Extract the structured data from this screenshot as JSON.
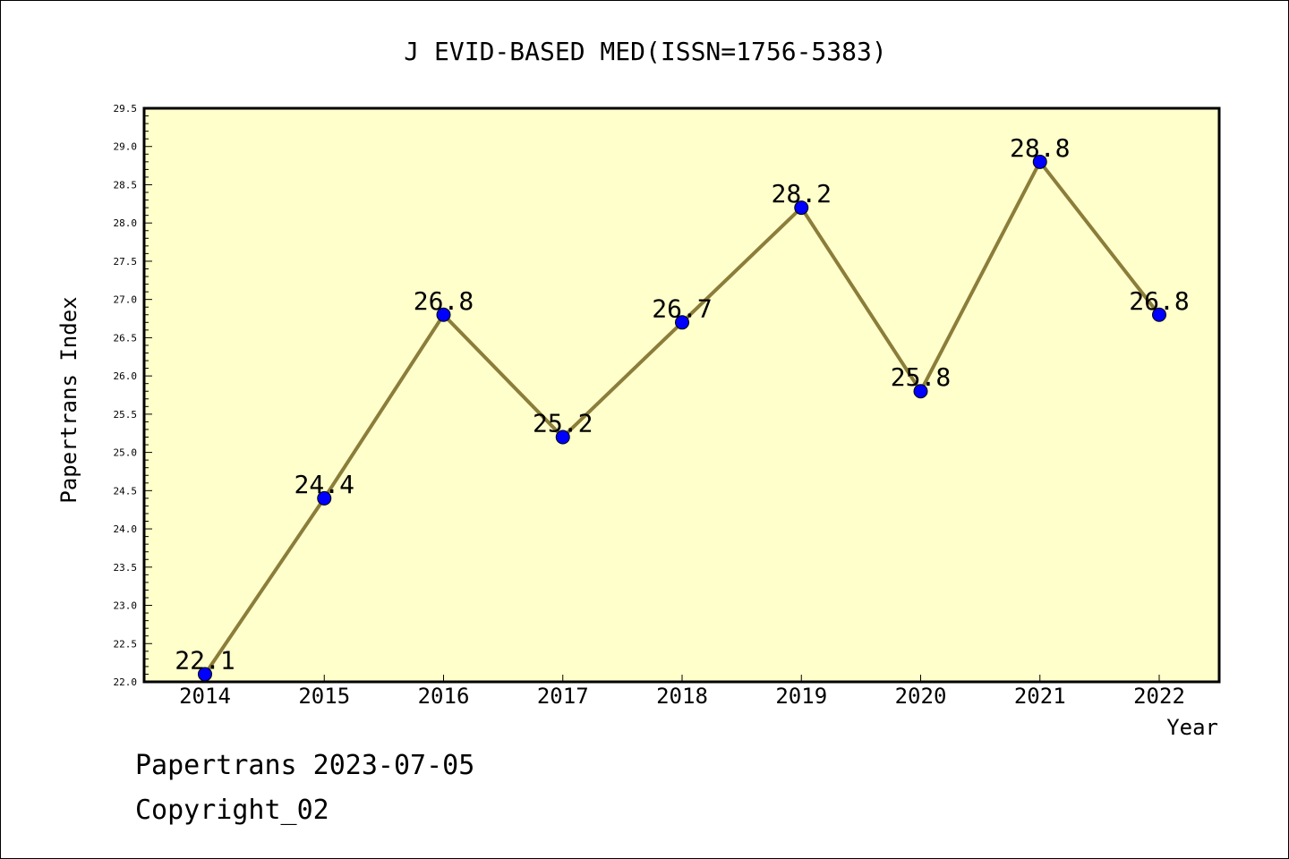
{
  "chart_data": {
    "type": "line",
    "title": "J EVID-BASED MED(ISSN=1756-5383)",
    "xlabel": "Year",
    "ylabel": "Papertrans Index",
    "categories": [
      "2014",
      "2015",
      "2016",
      "2017",
      "2018",
      "2019",
      "2020",
      "2021",
      "2022"
    ],
    "series": [
      {
        "values": [
          22.1,
          24.4,
          26.8,
          25.2,
          26.7,
          28.2,
          25.8,
          28.8,
          26.8
        ],
        "labels": [
          "22.1",
          "24.4",
          "26.8",
          "25.2",
          "26.7",
          "28.2",
          "25.8",
          "28.8",
          "26.8"
        ]
      }
    ],
    "ylim": [
      22.0,
      29.5
    ],
    "yticks": [
      "22.0",
      "22.5",
      "23.0",
      "23.5",
      "24.0",
      "24.5",
      "25.0",
      "25.5",
      "26.0",
      "26.5",
      "27.0",
      "27.5",
      "28.0",
      "28.5",
      "29.0",
      "29.5"
    ],
    "grid": false,
    "legend": "none"
  },
  "colors": {
    "plot_background": "#ffffcc",
    "line": "#8b7d3a",
    "marker": "#0000ff",
    "axis": "#000000"
  },
  "footer": {
    "line1": "Papertrans 2023-07-05",
    "line2": "Copyright_02"
  }
}
